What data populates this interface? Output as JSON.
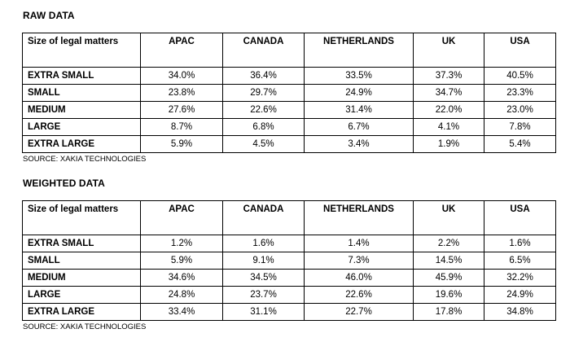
{
  "raw": {
    "title": "RAW DATA",
    "corner_label": "Size of legal matters",
    "columns": [
      "APAC",
      "CANADA",
      "NETHERLANDS",
      "UK",
      "USA"
    ],
    "rows": [
      {
        "label": "EXTRA SMALL",
        "values": [
          "34.0%",
          "36.4%",
          "33.5%",
          "37.3%",
          "40.5%"
        ]
      },
      {
        "label": "SMALL",
        "values": [
          "23.8%",
          "29.7%",
          "24.9%",
          "34.7%",
          "23.3%"
        ]
      },
      {
        "label": "MEDIUM",
        "values": [
          "27.6%",
          "22.6%",
          "31.4%",
          "22.0%",
          "23.0%"
        ]
      },
      {
        "label": "LARGE",
        "values": [
          "8.7%",
          "6.8%",
          "6.7%",
          "4.1%",
          "7.8%"
        ]
      },
      {
        "label": "EXTRA LARGE",
        "values": [
          "5.9%",
          "4.5%",
          "3.4%",
          "1.9%",
          "5.4%"
        ]
      }
    ],
    "source": "SOURCE: XAKIA TECHNOLOGIES"
  },
  "weighted": {
    "title": "WEIGHTED DATA",
    "corner_label": "Size of legal matters",
    "columns": [
      "APAC",
      "CANADA",
      "NETHERLANDS",
      "UK",
      "USA"
    ],
    "rows": [
      {
        "label": "EXTRA SMALL",
        "values": [
          "1.2%",
          "1.6%",
          "1.4%",
          "2.2%",
          "1.6%"
        ]
      },
      {
        "label": "SMALL",
        "values": [
          "5.9%",
          "9.1%",
          "7.3%",
          "14.5%",
          "6.5%"
        ]
      },
      {
        "label": "MEDIUM",
        "values": [
          "34.6%",
          "34.5%",
          "46.0%",
          "45.9%",
          "32.2%"
        ]
      },
      {
        "label": "LARGE",
        "values": [
          "24.8%",
          "23.7%",
          "22.6%",
          "19.6%",
          "24.9%"
        ]
      },
      {
        "label": "EXTRA LARGE",
        "values": [
          "33.4%",
          "31.1%",
          "22.7%",
          "17.8%",
          "34.8%"
        ]
      }
    ],
    "source": "SOURCE: XAKIA TECHNOLOGIES"
  }
}
